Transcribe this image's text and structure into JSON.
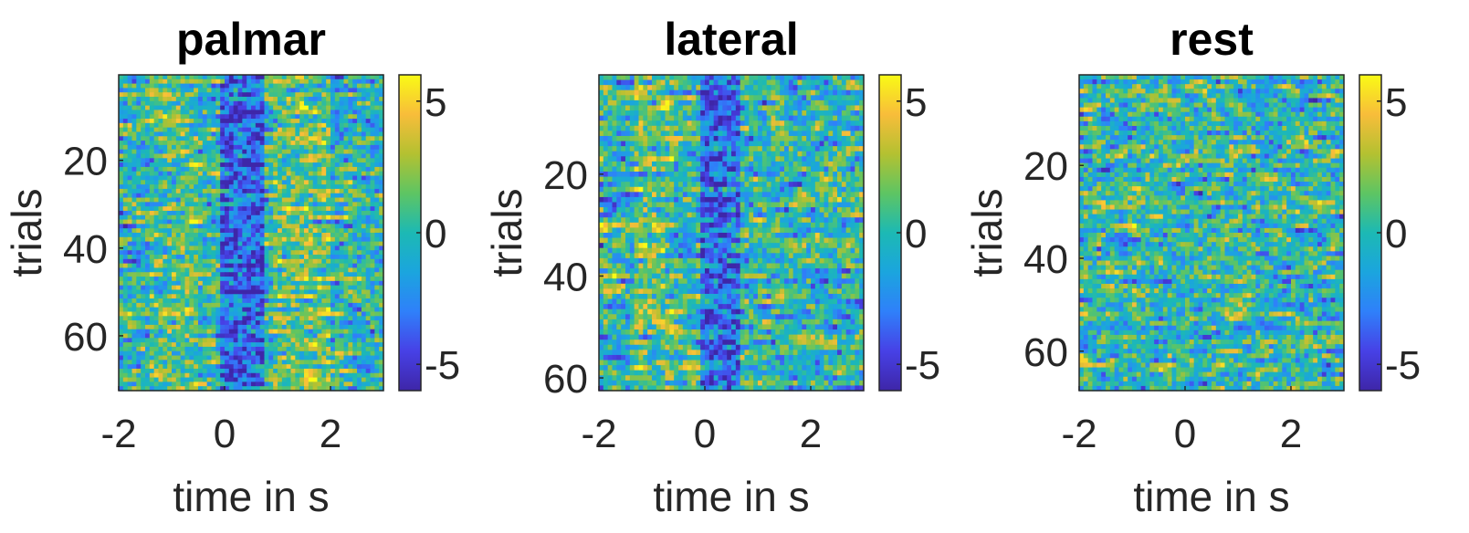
{
  "chart_data": [
    {
      "type": "heatmap",
      "title": "palmar",
      "xlabel": "time in s",
      "ylabel": "trials",
      "xlim": [
        -2,
        3
      ],
      "ylim": [
        1,
        72
      ],
      "y_reversed": true,
      "xticks": [
        -2,
        0,
        2
      ],
      "yticks": [
        20,
        40,
        60
      ],
      "colorbar": {
        "range": [
          -6,
          6
        ],
        "ticks": [
          5,
          0,
          -5
        ],
        "colormap": "parula"
      },
      "grid": false,
      "pattern": "trial x time random heatmap; blue (negative) band around 0 to 0.7 s, yellow (positive) band around 1 to 2 s and around -1 s"
    },
    {
      "type": "heatmap",
      "title": "lateral",
      "xlabel": "time in s",
      "ylabel": "trials",
      "xlim": [
        -2,
        3
      ],
      "ylim": [
        1,
        62
      ],
      "y_reversed": true,
      "xticks": [
        -2,
        0,
        2
      ],
      "yticks": [
        20,
        40,
        60
      ],
      "colorbar": {
        "range": [
          -6,
          6
        ],
        "ticks": [
          5,
          0,
          -5
        ],
        "colormap": "parula"
      },
      "grid": false,
      "pattern": "trial x time random heatmap; blue (negative) band around 0 to 0.7 s, yellow band around -1 s"
    },
    {
      "type": "heatmap",
      "title": "rest",
      "xlabel": "time in s",
      "ylabel": "trials",
      "xlim": [
        -2,
        3
      ],
      "ylim": [
        1,
        68
      ],
      "y_reversed": true,
      "xticks": [
        -2,
        0,
        2
      ],
      "yticks": [
        20,
        40,
        60
      ],
      "colorbar": {
        "range": [
          -6,
          6
        ],
        "ticks": [
          5,
          0,
          -5
        ],
        "colormap": "parula"
      },
      "grid": false,
      "pattern": "trial x time random heatmap without a clear structure"
    }
  ]
}
